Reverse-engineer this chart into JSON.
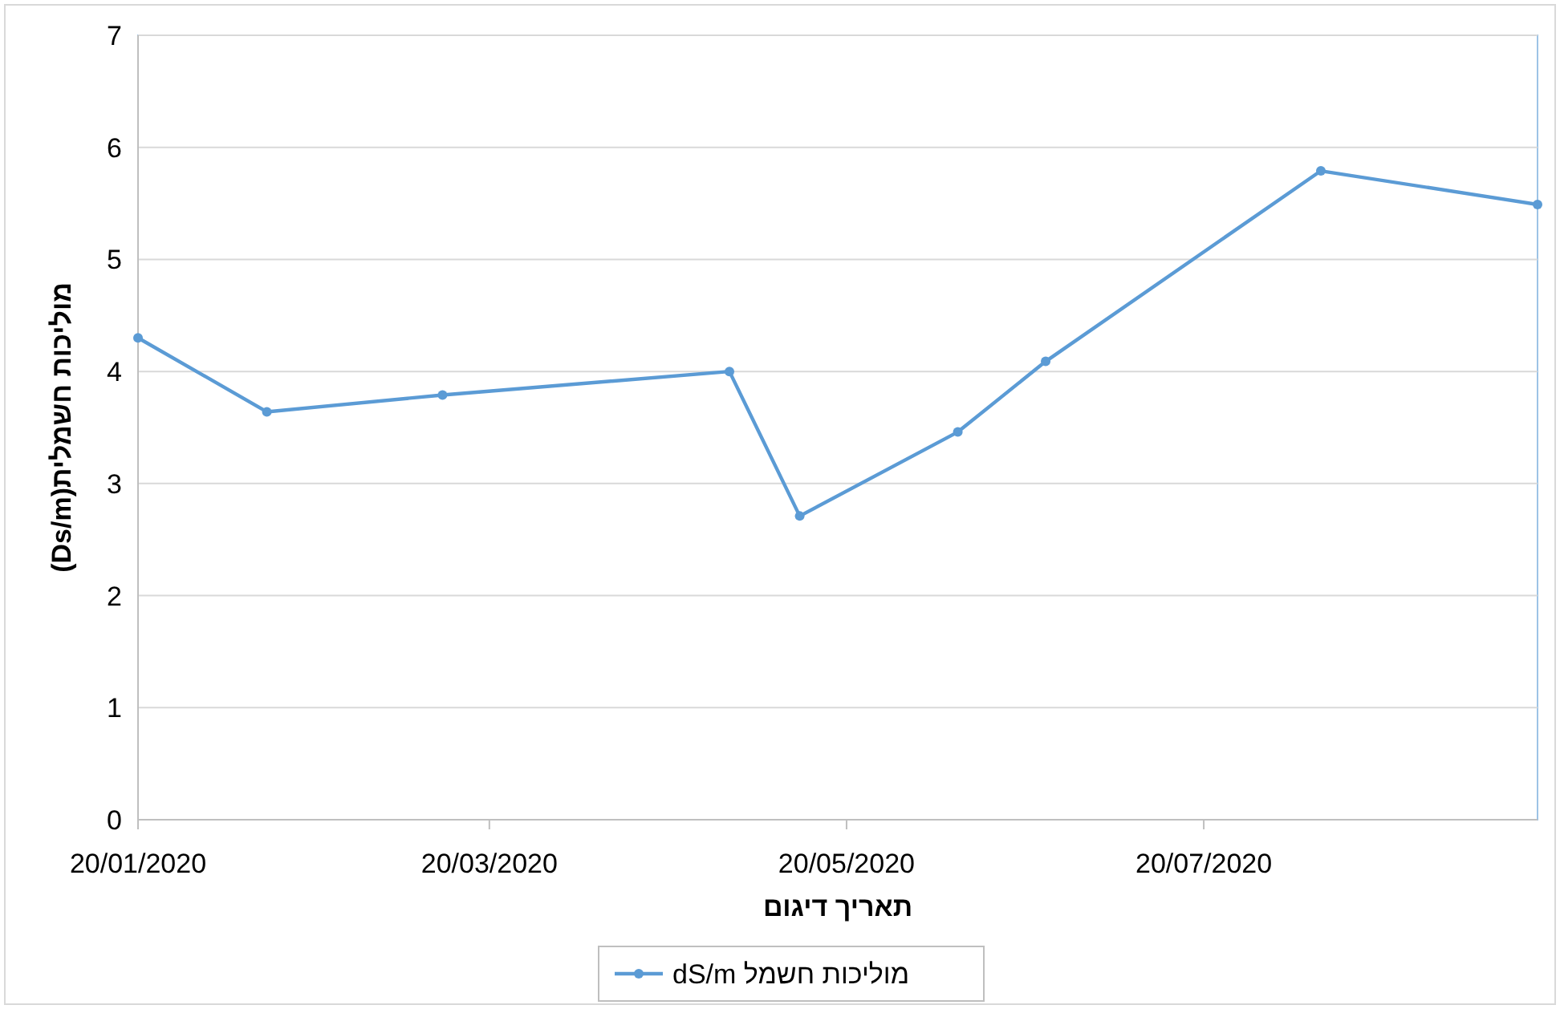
{
  "chart_data": {
    "type": "line",
    "xlabel": "תאריך דיגום",
    "ylabel": "מוליכות חשמלית(Ds/m)",
    "x": [
      "2020-01-20",
      "2020-02-11",
      "2020-03-12",
      "2020-04-30",
      "2020-05-12",
      "2020-06-08",
      "2020-06-23",
      "2020-08-09",
      "2020-09-15"
    ],
    "series": [
      {
        "name": "מוליכות חשמל dS/m",
        "color": "#5b9bd5",
        "values": [
          4.3,
          3.64,
          3.79,
          4.0,
          2.71,
          3.46,
          4.09,
          5.79,
          5.49
        ]
      }
    ],
    "xlim": [
      "2020-01-20",
      "2020-09-15"
    ],
    "xticks": [
      {
        "value": "2020-01-20",
        "label": "20/01/2020"
      },
      {
        "value": "2020-03-20",
        "label": "20/03/2020"
      },
      {
        "value": "2020-05-20",
        "label": "20/05/2020"
      },
      {
        "value": "2020-07-20",
        "label": "20/07/2020"
      }
    ],
    "ylim": [
      0,
      7
    ],
    "yticks": [
      0,
      1,
      2,
      3,
      4,
      5,
      6,
      7
    ],
    "grid": "y",
    "legend": "bottom",
    "marker": "circle",
    "line_style": "solid"
  }
}
